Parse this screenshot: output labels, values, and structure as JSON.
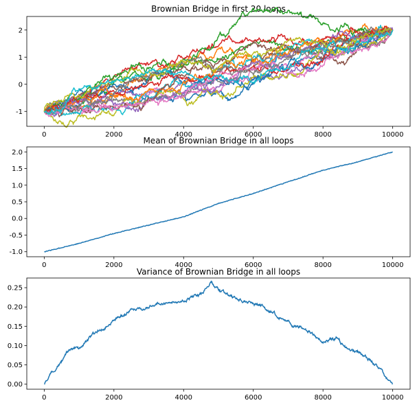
{
  "chart_data": [
    {
      "type": "line",
      "title": "Brownian Bridge in first 20 loops",
      "xlabel": "",
      "ylabel": "",
      "xlim": [
        -500,
        10500
      ],
      "ylim": [
        -1.55,
        2.5
      ],
      "xticks": [
        0,
        2000,
        4000,
        6000,
        8000,
        10000
      ],
      "yticks": [
        -1,
        0,
        1,
        2
      ],
      "grid": false,
      "legend": "none",
      "series_count": 20,
      "series_description": "20 Brownian bridge sample paths, each starting at -1 at step 0 and ending at 2 at step 10000",
      "start": -1,
      "end": 2,
      "n_steps": 10000,
      "colors": [
        "#1f77b4",
        "#ff7f0e",
        "#2ca02c",
        "#d62728",
        "#9467bd",
        "#8c564b",
        "#e377c2",
        "#7f7f7f",
        "#bcbd22",
        "#17becf",
        "#1f77b4",
        "#ff7f0e",
        "#2ca02c",
        "#d62728",
        "#9467bd",
        "#8c564b",
        "#e377c2",
        "#7f7f7f",
        "#bcbd22",
        "#17becf"
      ]
    },
    {
      "type": "line",
      "title": "Mean of Brownian Bridge in all loops",
      "xlabel": "",
      "ylabel": "",
      "xlim": [
        -500,
        10500
      ],
      "ylim": [
        -1.15,
        2.15
      ],
      "xticks": [
        0,
        2000,
        4000,
        6000,
        8000,
        10000
      ],
      "yticks": [
        -1.0,
        -0.5,
        0.0,
        0.5,
        1.0,
        1.5,
        2.0
      ],
      "ytick_labels": [
        "-1.0",
        "-0.5",
        "0.0",
        "0.5",
        "1.0",
        "1.5",
        "2.0"
      ],
      "grid": false,
      "legend": "none",
      "color": "#1f77b4",
      "series": [
        {
          "x": [
            0,
            1000,
            2000,
            3000,
            4000,
            4500,
            5000,
            6000,
            7000,
            8000,
            9000,
            10000
          ],
          "y": [
            -1.0,
            -0.75,
            -0.45,
            -0.2,
            0.05,
            0.25,
            0.45,
            0.75,
            1.1,
            1.45,
            1.7,
            2.0
          ]
        }
      ]
    },
    {
      "type": "line",
      "title": "Variance of Brownian Bridge in all loops",
      "xlabel": "",
      "ylabel": "",
      "xlim": [
        -500,
        10500
      ],
      "ylim": [
        -0.013,
        0.275
      ],
      "xticks": [
        0,
        2000,
        4000,
        6000,
        8000,
        10000
      ],
      "yticks": [
        0.0,
        0.05,
        0.1,
        0.15,
        0.2,
        0.25
      ],
      "ytick_labels": [
        "0.00",
        "0.05",
        "0.10",
        "0.15",
        "0.20",
        "0.25"
      ],
      "grid": false,
      "legend": "none",
      "color": "#1f77b4",
      "series": [
        {
          "x": [
            0,
            300,
            500,
            700,
            1000,
            1300,
            1600,
            2000,
            2500,
            3000,
            3500,
            4000,
            4500,
            4800,
            5000,
            5500,
            6000,
            6500,
            7000,
            7500,
            8000,
            8400,
            8700,
            9000,
            9400,
            9700,
            10000
          ],
          "y": [
            0.0,
            0.04,
            0.06,
            0.085,
            0.09,
            0.12,
            0.14,
            0.17,
            0.19,
            0.2,
            0.21,
            0.22,
            0.235,
            0.262,
            0.245,
            0.22,
            0.21,
            0.19,
            0.16,
            0.14,
            0.11,
            0.12,
            0.09,
            0.085,
            0.06,
            0.03,
            0.0
          ]
        }
      ]
    }
  ]
}
